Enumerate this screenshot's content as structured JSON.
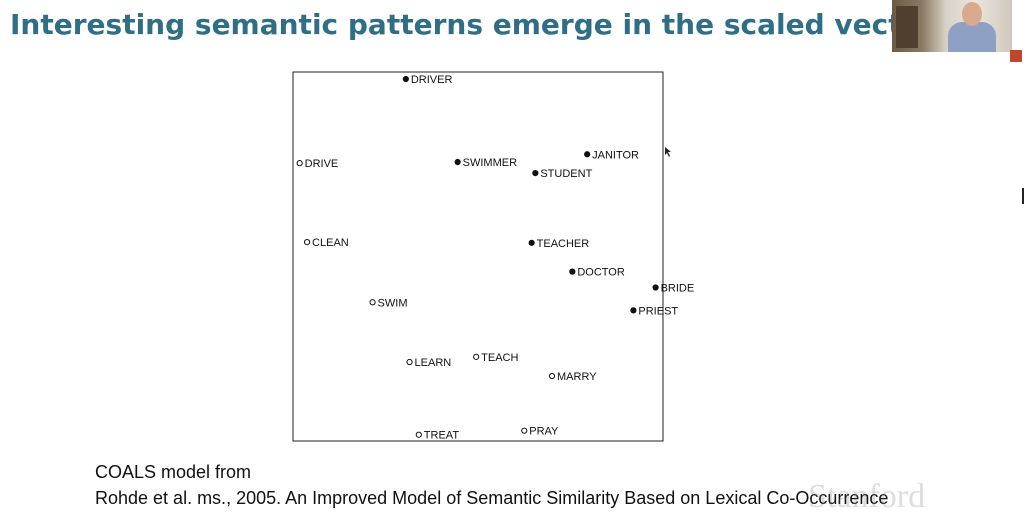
{
  "slide": {
    "title": "Interesting semantic patterns emerge in the scaled vectors",
    "footer_line1": "COALS model from",
    "footer_line2": "Rohde et al. ms., 2005. An Improved Model of Semantic Similarity Based on Lexical Co-Occurrence",
    "watermark": "Stanford"
  },
  "chart_data": {
    "type": "scatter",
    "title": "",
    "xlabel": "",
    "ylabel": "",
    "xlim": [
      0,
      100
    ],
    "ylim": [
      0,
      100
    ],
    "grid": false,
    "legend": "none",
    "series": [
      {
        "marker": "filled",
        "points": [
          {
            "label": "DRIVER",
            "x": 30.5,
            "y": 98.1
          },
          {
            "label": "SWIMMER",
            "x": 44.5,
            "y": 75.6
          },
          {
            "label": "JANITOR",
            "x": 79.5,
            "y": 77.7
          },
          {
            "label": "STUDENT",
            "x": 65.5,
            "y": 72.6
          },
          {
            "label": "TEACHER",
            "x": 64.5,
            "y": 53.7
          },
          {
            "label": "DOCTOR",
            "x": 75.5,
            "y": 45.9
          },
          {
            "label": "BRIDE",
            "x": 98.0,
            "y": 41.6
          },
          {
            "label": "PRIEST",
            "x": 92.0,
            "y": 35.4
          }
        ]
      },
      {
        "marker": "hollow",
        "points": [
          {
            "label": "DRIVE",
            "x": 1.8,
            "y": 75.3
          },
          {
            "label": "CLEAN",
            "x": 3.8,
            "y": 53.9
          },
          {
            "label": "SWIM",
            "x": 21.5,
            "y": 37.6
          },
          {
            "label": "LEARN",
            "x": 31.5,
            "y": 21.4
          },
          {
            "label": "TEACH",
            "x": 49.5,
            "y": 22.8
          },
          {
            "label": "MARRY",
            "x": 70.0,
            "y": 17.6
          },
          {
            "label": "PRAY",
            "x": 62.5,
            "y": 2.8
          },
          {
            "label": "TREAT",
            "x": 34.0,
            "y": 1.7
          }
        ]
      }
    ]
  }
}
